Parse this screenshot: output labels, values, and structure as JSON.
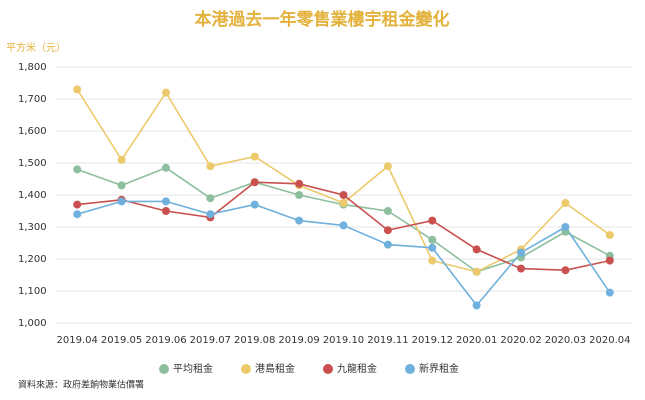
{
  "chart_data": {
    "type": "line",
    "title": "本港過去一年零售業樓宇租金變化",
    "y_label": "平方米（元）",
    "source": "資料來源：政府差餉物業估價署",
    "categories": [
      "2019.04",
      "2019.05",
      "2019.06",
      "2019.07",
      "2019.08",
      "2019.09",
      "2019.10",
      "2019.11",
      "2019.12",
      "2020.01",
      "2020.02",
      "2020.03",
      "2020.04"
    ],
    "series": [
      {
        "name": "平均租金",
        "color": "#8dbf9e",
        "values": [
          1480,
          1430,
          1485,
          1390,
          1440,
          1400,
          1370,
          1350,
          1260,
          1160,
          1205,
          1285,
          1210
        ]
      },
      {
        "name": "港島租金",
        "color": "#ecc96a",
        "values": [
          1730,
          1510,
          1720,
          1490,
          1520,
          1430,
          1375,
          1490,
          1195,
          1160,
          1230,
          1375,
          1275
        ]
      },
      {
        "name": "九龍租金",
        "color": "#c9504f",
        "values": [
          1370,
          1385,
          1350,
          1330,
          1440,
          1435,
          1400,
          1290,
          1320,
          1230,
          1170,
          1165,
          1195
        ]
      },
      {
        "name": "新界租金",
        "color": "#6fb0dc",
        "values": [
          1340,
          1380,
          1380,
          1340,
          1370,
          1320,
          1305,
          1245,
          1235,
          1055,
          1220,
          1300,
          1095
        ]
      }
    ],
    "ylim": [
      1000,
      1800
    ],
    "yticks": [
      {
        "value": 1000,
        "label": "1,000"
      },
      {
        "value": 1100,
        "label": "1,100"
      },
      {
        "value": 1200,
        "label": "1,200"
      },
      {
        "value": 1300,
        "label": "1,300"
      },
      {
        "value": 1400,
        "label": "1,400"
      },
      {
        "value": 1500,
        "label": "1,500"
      },
      {
        "value": 1600,
        "label": "1,600"
      },
      {
        "value": 1700,
        "label": "1,700"
      },
      {
        "value": 1800,
        "label": "1,800"
      }
    ],
    "grid": true,
    "legend": "bottom"
  }
}
